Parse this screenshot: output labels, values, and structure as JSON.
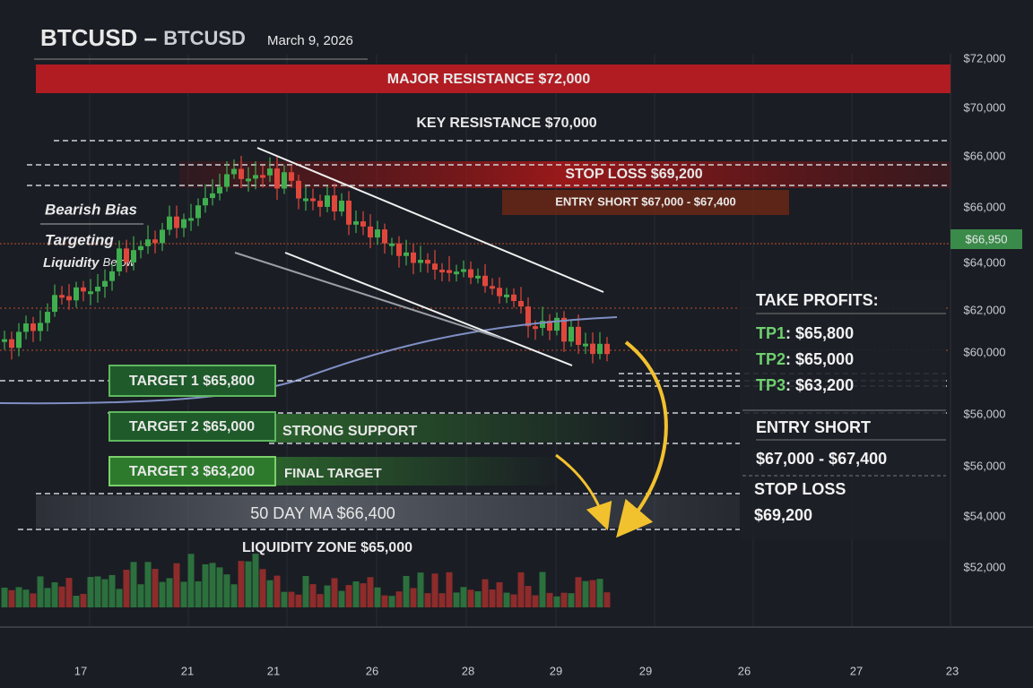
{
  "header": {
    "symbol": "BTCUSD",
    "dash": "–",
    "name": "BTCUSD",
    "date": "March 9, 2026"
  },
  "price_axis": [
    "$72,000",
    "$70,000",
    "$66,000",
    "$66,000",
    "$64,000",
    "$62,000",
    "$60,000",
    "$56,000",
    "$56,000",
    "$54,000",
    "$52,000"
  ],
  "current_price": "$66,950",
  "date_axis": [
    "17",
    "21",
    "21",
    "26",
    "28",
    "29",
    "29",
    "26",
    "27",
    "23"
  ],
  "annotations": {
    "major_resistance": "MAJOR RESISTANCE $72,000",
    "key_resistance": "KEY RESISTANCE $70,000",
    "stop_loss": "STOP LOSS $69,200",
    "entry_short": "ENTRY SHORT $67,000 - $67,400",
    "bias": "Bearish Bias",
    "targeting": "Targeting",
    "liquidity": "Liquidity",
    "below": "Below",
    "target1": "TARGET 1  $65,800",
    "target2": "TARGET 2  $65,000",
    "target3": "TARGET 3  $63,200",
    "strong_support": "STRONG SUPPORT",
    "final_target": "FINAL TARGET",
    "ma50": "50 DAY MA $66,400",
    "liquidity_zone": "LIQUIDITY ZONE $65,000"
  },
  "panel": {
    "take_profits": "TAKE PROFITS:",
    "tps": [
      {
        "label": "TP1",
        "price": ": $65,800"
      },
      {
        "label": "TP2",
        "price": ": $65,000"
      },
      {
        "label": "TP3",
        "price": ": $63,200"
      }
    ],
    "entry_title": "ENTRY SHORT",
    "entry_range": "$67,000 - $67,400",
    "stop_title": "STOP LOSS",
    "stop_price": "$69,200"
  }
}
